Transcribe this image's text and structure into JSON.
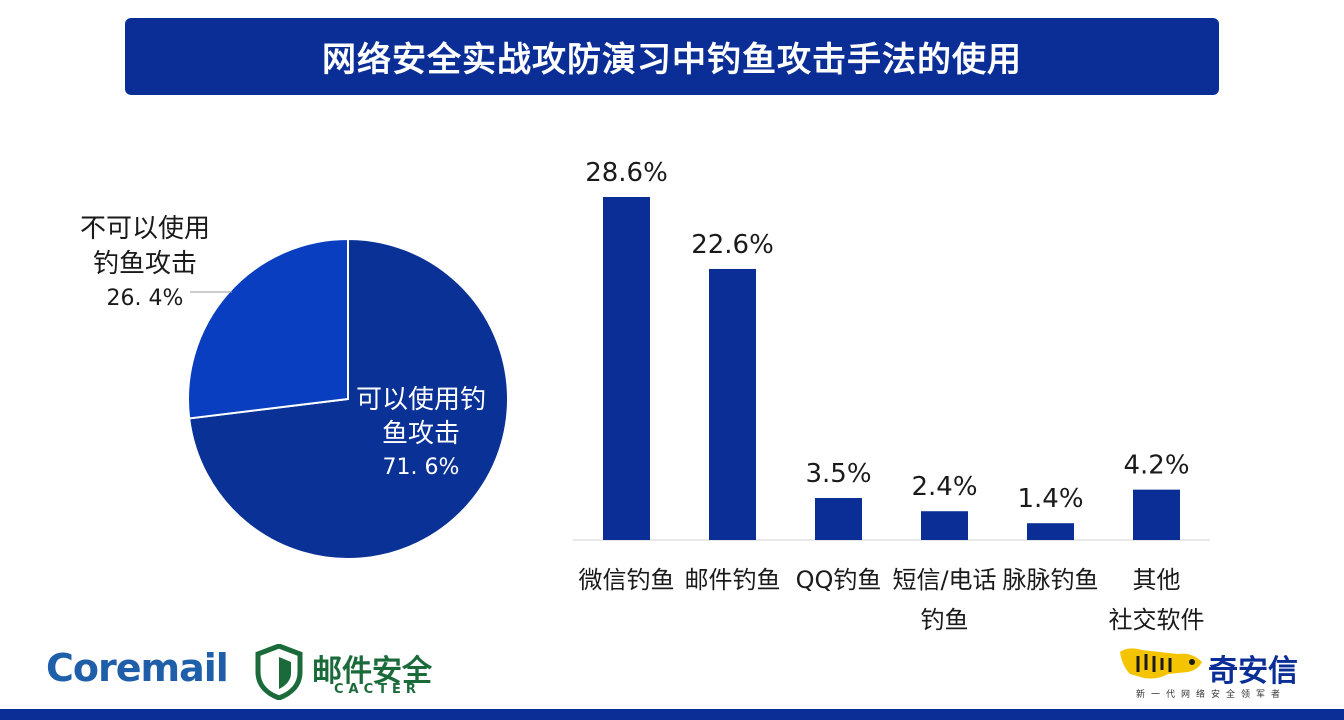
{
  "title": "网络安全实战攻防演习中钓鱼攻击手法的使用",
  "colors": {
    "primary": "#0a2e96",
    "pie_dark": "#0a3196",
    "pie_light": "#0a3ec0",
    "coremail_blue": "#1f5ea8",
    "cacter_green": "#1b6b3a",
    "qax_yellow": "#f5c400"
  },
  "chart_data": [
    {
      "type": "pie",
      "slices": [
        {
          "label_lines": [
            "可以使用钓",
            "鱼攻击"
          ],
          "value": 71.6,
          "value_label": "71. 6%"
        },
        {
          "label_lines": [
            "不可以使用",
            "钓鱼攻击"
          ],
          "value": 26.4,
          "value_label": "26. 4%"
        }
      ]
    },
    {
      "type": "bar",
      "categories": [
        [
          "微信钓鱼"
        ],
        [
          "邮件钓鱼"
        ],
        [
          "QQ钓鱼"
        ],
        [
          "短信/电话",
          "钓鱼"
        ],
        [
          "脉脉钓鱼"
        ],
        [
          "其他",
          "社交软件"
        ]
      ],
      "values": [
        28.6,
        22.6,
        3.5,
        2.4,
        1.4,
        4.2
      ],
      "data_labels": [
        "28.6%",
        "22.6%",
        "3.5%",
        "2.4%",
        "1.4%",
        "4.2%"
      ],
      "ylim": [
        0,
        28.6
      ]
    }
  ],
  "logos": {
    "coremail": "Coremail",
    "cacter_cn": "邮件安全",
    "cacter_en": "CACTER",
    "qax_cn": "奇安信",
    "qax_slogan": "新一代网络安全领军者",
    "qax_icon": "tiger-icon"
  }
}
